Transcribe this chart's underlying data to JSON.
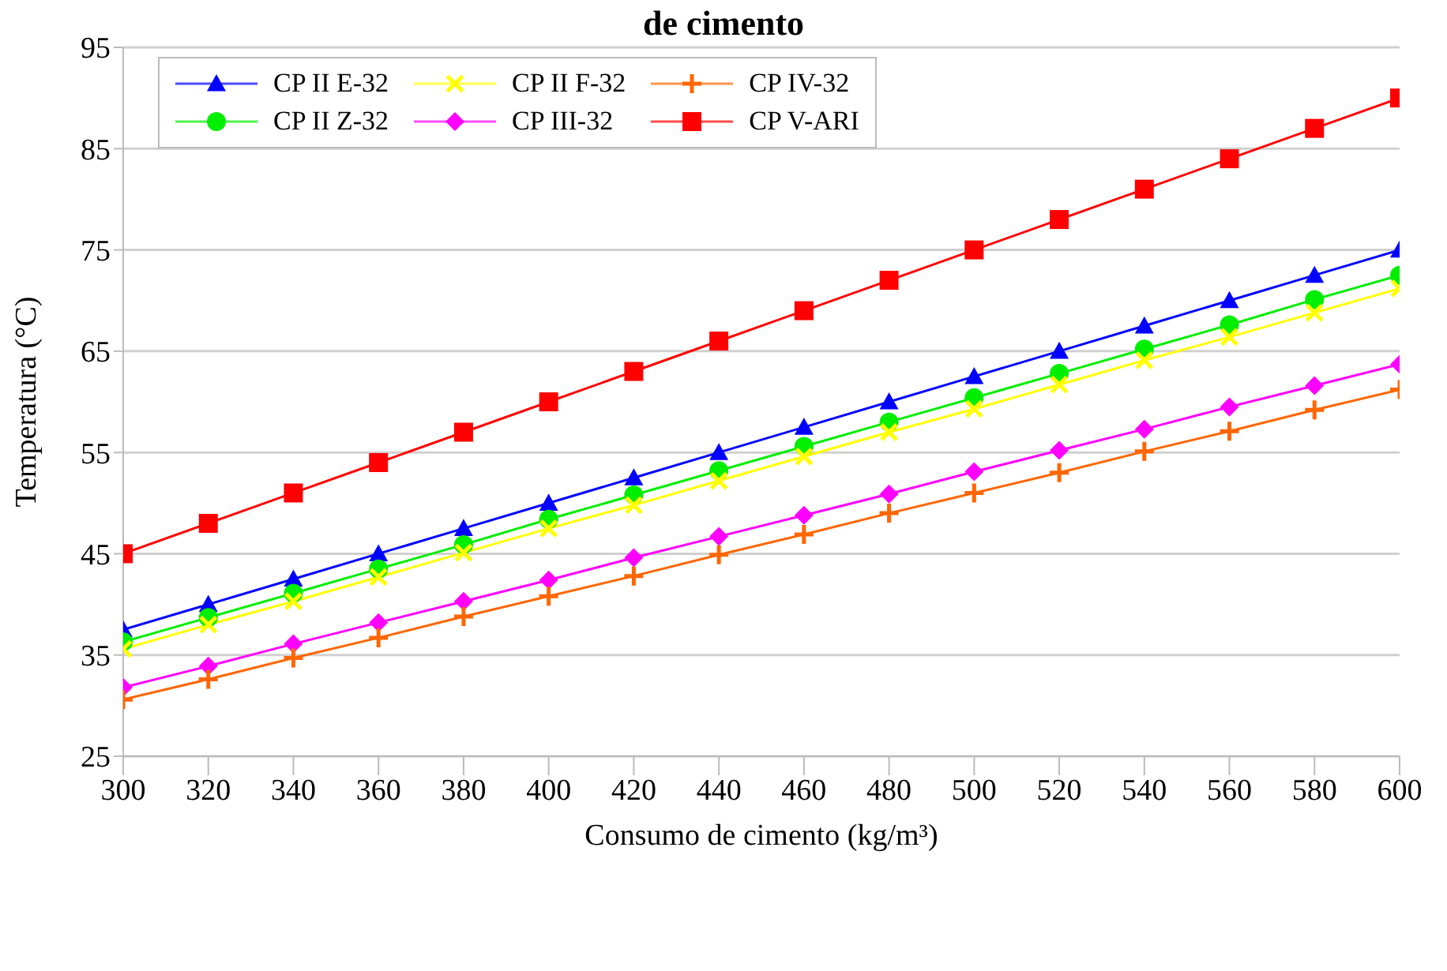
{
  "chart_data": {
    "type": "line",
    "title": "de cimento",
    "xlabel": "Consumo de cimento (kg/m³)",
    "ylabel": "Temperatura (°C)",
    "x": [
      300,
      320,
      340,
      360,
      380,
      400,
      420,
      440,
      460,
      480,
      500,
      520,
      540,
      560,
      580,
      600
    ],
    "xlim": [
      300,
      600
    ],
    "xticks": [
      300,
      320,
      340,
      360,
      380,
      400,
      420,
      440,
      460,
      480,
      500,
      520,
      540,
      560,
      580,
      600
    ],
    "ylim": [
      25,
      95
    ],
    "yticks": [
      25,
      35,
      45,
      55,
      65,
      75,
      85,
      95
    ],
    "grid": "y",
    "legend": "top left",
    "series": [
      {
        "name": "CP II E-32",
        "color": "#0000ff",
        "marker": "triangle",
        "values": [
          37.5,
          40,
          42.5,
          45,
          47.5,
          50,
          52.5,
          55,
          57.5,
          60,
          62.5,
          65,
          67.5,
          70,
          72.5,
          75
        ]
      },
      {
        "name": "CP II Z-32",
        "color": "#00ee00",
        "marker": "circle",
        "values": [
          36.3,
          38.7,
          41.1,
          43.5,
          45.9,
          48.4,
          50.8,
          53.2,
          55.6,
          58.0,
          60.4,
          62.8,
          65.2,
          67.6,
          70.1,
          72.5
        ]
      },
      {
        "name": "CP II F-32",
        "color": "#ffff00",
        "marker": "cross",
        "values": [
          35.6,
          38.0,
          40.3,
          42.7,
          45.1,
          47.5,
          49.8,
          52.2,
          54.6,
          57.0,
          59.3,
          61.7,
          64.1,
          66.4,
          68.8,
          71.2
        ]
      },
      {
        "name": "CP III-32",
        "color": "#ff00ff",
        "marker": "diamond",
        "values": [
          31.8,
          33.9,
          36.1,
          38.2,
          40.3,
          42.4,
          44.6,
          46.7,
          48.8,
          50.9,
          53.1,
          55.2,
          57.3,
          59.5,
          61.6,
          63.7
        ]
      },
      {
        "name": "CP IV-32",
        "color": "#ff6600",
        "marker": "plus",
        "values": [
          30.6,
          32.6,
          34.7,
          36.7,
          38.8,
          40.8,
          42.8,
          44.9,
          46.9,
          49.0,
          51.0,
          53.0,
          55.1,
          57.1,
          59.2,
          61.2
        ]
      },
      {
        "name": "CP V-ARI",
        "color": "#ff0000",
        "marker": "square",
        "values": [
          45,
          48,
          51,
          54,
          57,
          60,
          63,
          66,
          69,
          72,
          75,
          78,
          81,
          84,
          87,
          90
        ]
      }
    ]
  }
}
